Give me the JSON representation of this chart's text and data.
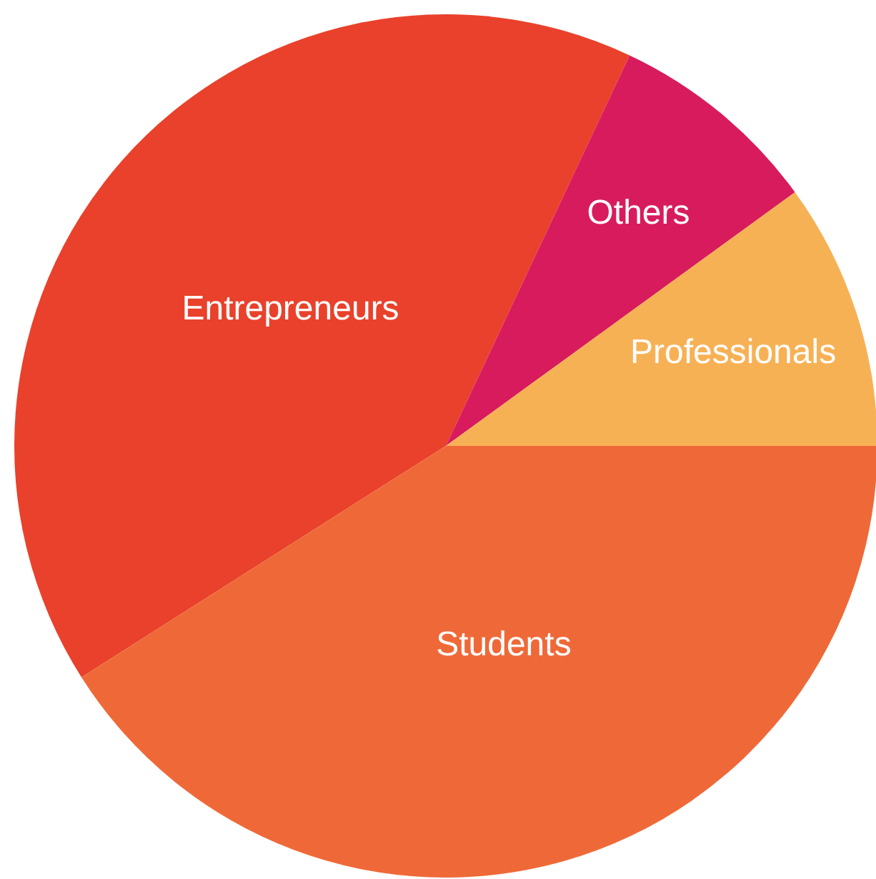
{
  "chart_data": {
    "type": "pie",
    "categories": [
      "Entrepreneurs",
      "Others",
      "Professionals",
      "Students"
    ],
    "values": [
      41,
      8,
      10,
      41
    ],
    "colors": [
      "#e9412b",
      "#d81b5c",
      "#f7b155",
      "#ef6938"
    ]
  }
}
